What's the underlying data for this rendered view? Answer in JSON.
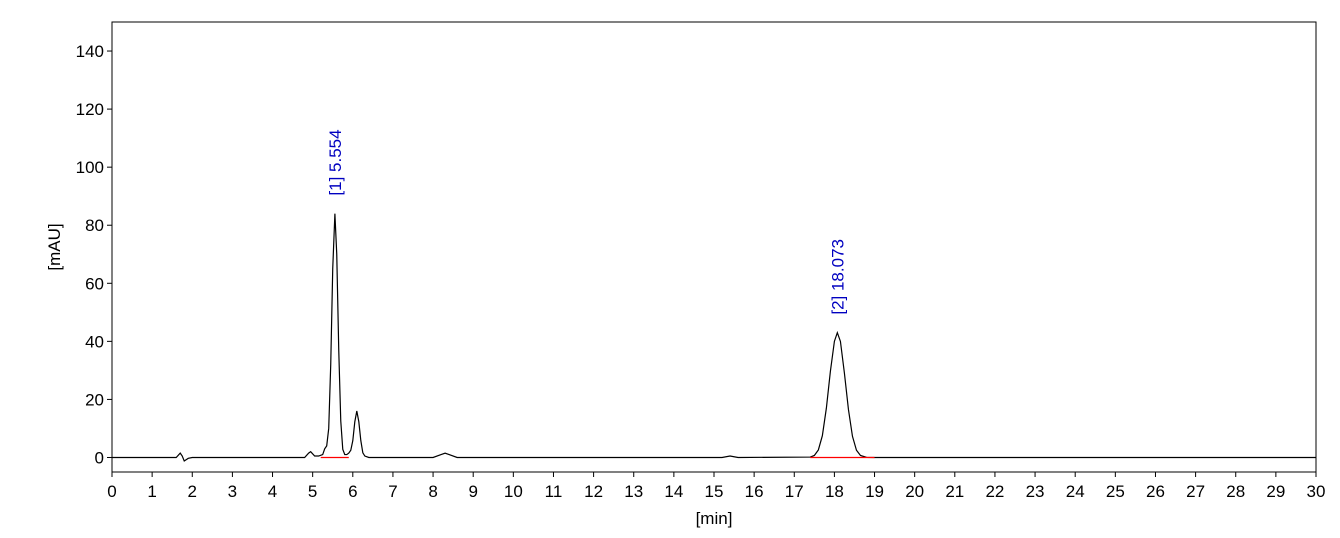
{
  "chart_data": {
    "type": "line",
    "xlabel": "[min]",
    "ylabel": "[mAU]",
    "xlim": [
      0,
      30
    ],
    "ylim": [
      -5,
      150
    ],
    "xticks": [
      0,
      1,
      2,
      3,
      4,
      5,
      6,
      7,
      8,
      9,
      10,
      11,
      12,
      13,
      14,
      15,
      16,
      17,
      18,
      19,
      20,
      21,
      22,
      23,
      24,
      25,
      26,
      27,
      28,
      29,
      30
    ],
    "yticks": [
      0,
      20,
      40,
      60,
      80,
      100,
      120,
      140
    ],
    "grid": false,
    "series": [
      {
        "color": "#000000",
        "x": [
          0,
          1.6,
          1.7,
          1.75,
          1.8,
          1.9,
          2.0,
          4.8,
          4.9,
          4.95,
          5.05,
          5.15,
          5.25,
          5.3,
          5.35,
          5.4,
          5.45,
          5.5,
          5.554,
          5.6,
          5.65,
          5.7,
          5.75,
          5.8,
          5.85,
          5.9,
          5.95,
          6.0,
          6.05,
          6.1,
          6.15,
          6.2,
          6.25,
          6.3,
          6.4,
          8.0,
          8.2,
          8.3,
          8.4,
          8.6,
          15.2,
          15.4,
          15.6,
          17.4,
          17.5,
          17.6,
          17.7,
          17.8,
          17.9,
          18.0,
          18.073,
          18.15,
          18.25,
          18.35,
          18.45,
          18.55,
          18.65,
          18.8,
          19.0,
          30
        ],
        "values": [
          0,
          0,
          1.5,
          0.5,
          -1.2,
          -0.3,
          0,
          0,
          1.5,
          2,
          0.5,
          0.5,
          1,
          3,
          4,
          10,
          32,
          65,
          84,
          70,
          37,
          12.6,
          2.8,
          1,
          1,
          1.5,
          2.5,
          5.8,
          12.3,
          16,
          12.3,
          5.8,
          1.6,
          0.5,
          0,
          0,
          1,
          1.5,
          1,
          0,
          0,
          0.5,
          0,
          0.15,
          0.7,
          2.6,
          7.5,
          17,
          29.7,
          40,
          43,
          40,
          29,
          16.5,
          7.3,
          2.5,
          0.7,
          0.05,
          0,
          0
        ]
      }
    ],
    "baselines": [
      {
        "color": "#ff0000",
        "x": [
          5.2,
          5.9
        ],
        "y": [
          0,
          0
        ]
      },
      {
        "color": "#ff0000",
        "x": [
          17.4,
          19.0
        ],
        "y": [
          0,
          0
        ]
      }
    ],
    "peak_labels": [
      {
        "text": "[1]  5.554",
        "x": 5.554,
        "y": 84,
        "color": "#0000c0"
      },
      {
        "text": "[2]  18.073",
        "x": 18.073,
        "y": 43,
        "color": "#0000c0"
      }
    ]
  }
}
